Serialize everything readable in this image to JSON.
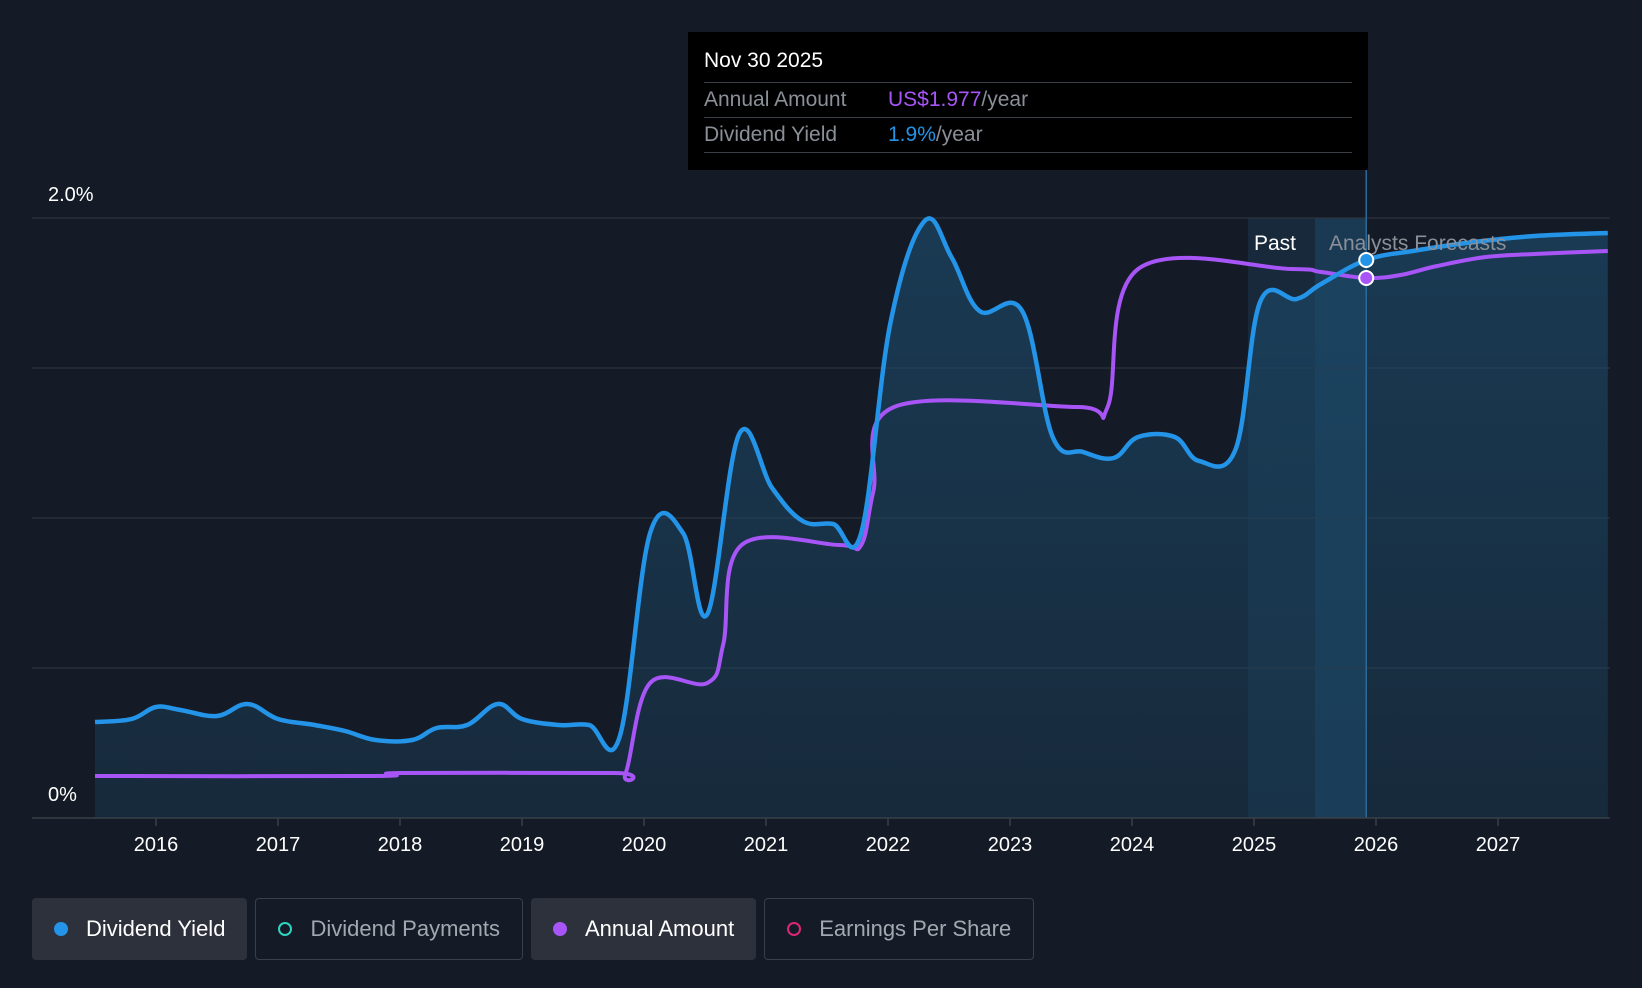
{
  "chart_data": {
    "type": "line",
    "y_labels": [
      "2.0%",
      "0%"
    ],
    "ylim": [
      0,
      2.0
    ],
    "x_ticks": [
      "2016",
      "2017",
      "2018",
      "2019",
      "2020",
      "2021",
      "2022",
      "2023",
      "2024",
      "2025",
      "2026",
      "2027"
    ],
    "xlim": [
      2015.5,
      2027.9
    ],
    "region_labels": {
      "past": "Past",
      "forecast": "Analysts Forecasts"
    },
    "past_band": [
      2024.95,
      2025.92
    ],
    "series": [
      {
        "name": "Dividend Yield",
        "color": "#2394e8",
        "fill": true,
        "points": [
          [
            2015.5,
            0.32
          ],
          [
            2015.8,
            0.33
          ],
          [
            2016.0,
            0.37
          ],
          [
            2016.2,
            0.36
          ],
          [
            2016.5,
            0.34
          ],
          [
            2016.75,
            0.38
          ],
          [
            2017.0,
            0.33
          ],
          [
            2017.3,
            0.31
          ],
          [
            2017.55,
            0.29
          ],
          [
            2017.8,
            0.26
          ],
          [
            2018.1,
            0.26
          ],
          [
            2018.3,
            0.3
          ],
          [
            2018.55,
            0.31
          ],
          [
            2018.8,
            0.38
          ],
          [
            2019.0,
            0.33
          ],
          [
            2019.3,
            0.31
          ],
          [
            2019.55,
            0.31
          ],
          [
            2019.8,
            0.27
          ],
          [
            2020.05,
            0.95
          ],
          [
            2020.32,
            0.95
          ],
          [
            2020.52,
            0.68
          ],
          [
            2020.78,
            1.28
          ],
          [
            2021.05,
            1.1
          ],
          [
            2021.3,
            0.99
          ],
          [
            2021.55,
            0.98
          ],
          [
            2021.78,
            0.95
          ],
          [
            2022.02,
            1.65
          ],
          [
            2022.3,
            1.99
          ],
          [
            2022.52,
            1.87
          ],
          [
            2022.75,
            1.69
          ],
          [
            2023.1,
            1.69
          ],
          [
            2023.35,
            1.27
          ],
          [
            2023.6,
            1.22
          ],
          [
            2023.85,
            1.2
          ],
          [
            2024.05,
            1.27
          ],
          [
            2024.35,
            1.27
          ],
          [
            2024.55,
            1.19
          ],
          [
            2024.85,
            1.23
          ],
          [
            2025.05,
            1.72
          ],
          [
            2025.35,
            1.73
          ],
          [
            2025.55,
            1.78
          ],
          [
            2025.92,
            1.86
          ],
          [
            2026.3,
            1.89
          ],
          [
            2026.8,
            1.92
          ],
          [
            2027.3,
            1.94
          ],
          [
            2027.9,
            1.95
          ]
        ]
      },
      {
        "name": "Annual Amount",
        "color": "#a855f7",
        "fill": false,
        "points": [
          [
            2015.5,
            0.14
          ],
          [
            2017.8,
            0.14
          ],
          [
            2018.0,
            0.15
          ],
          [
            2019.75,
            0.15
          ],
          [
            2019.85,
            0.15
          ],
          [
            2020.05,
            0.45
          ],
          [
            2020.52,
            0.45
          ],
          [
            2020.65,
            0.58
          ],
          [
            2020.8,
            0.91
          ],
          [
            2021.6,
            0.91
          ],
          [
            2021.78,
            0.91
          ],
          [
            2021.88,
            1.09
          ],
          [
            2022.05,
            1.37
          ],
          [
            2023.55,
            1.37
          ],
          [
            2023.8,
            1.37
          ],
          [
            2024.05,
            1.83
          ],
          [
            2025.3,
            1.83
          ],
          [
            2025.55,
            1.82
          ],
          [
            2025.92,
            1.8
          ],
          [
            2026.2,
            1.81
          ],
          [
            2026.5,
            1.84
          ],
          [
            2026.9,
            1.87
          ],
          [
            2027.3,
            1.88
          ],
          [
            2027.9,
            1.89
          ]
        ]
      }
    ],
    "hover_x": 2025.92
  },
  "tooltip": {
    "date": "Nov 30 2025",
    "rows": [
      {
        "label": "Annual Amount",
        "value": "US$1.977",
        "unit": "/year"
      },
      {
        "label": "Dividend Yield",
        "value": "1.9%",
        "unit": "/year"
      }
    ]
  },
  "legend": [
    {
      "label": "Dividend Yield",
      "color": "#2394e8",
      "active": true,
      "filled": true
    },
    {
      "label": "Dividend Payments",
      "color": "#2dd4bf",
      "active": false,
      "filled": false
    },
    {
      "label": "Annual Amount",
      "color": "#a855f7",
      "active": true,
      "filled": true
    },
    {
      "label": "Earnings Per Share",
      "color": "#db2777",
      "active": false,
      "filled": false
    }
  ]
}
